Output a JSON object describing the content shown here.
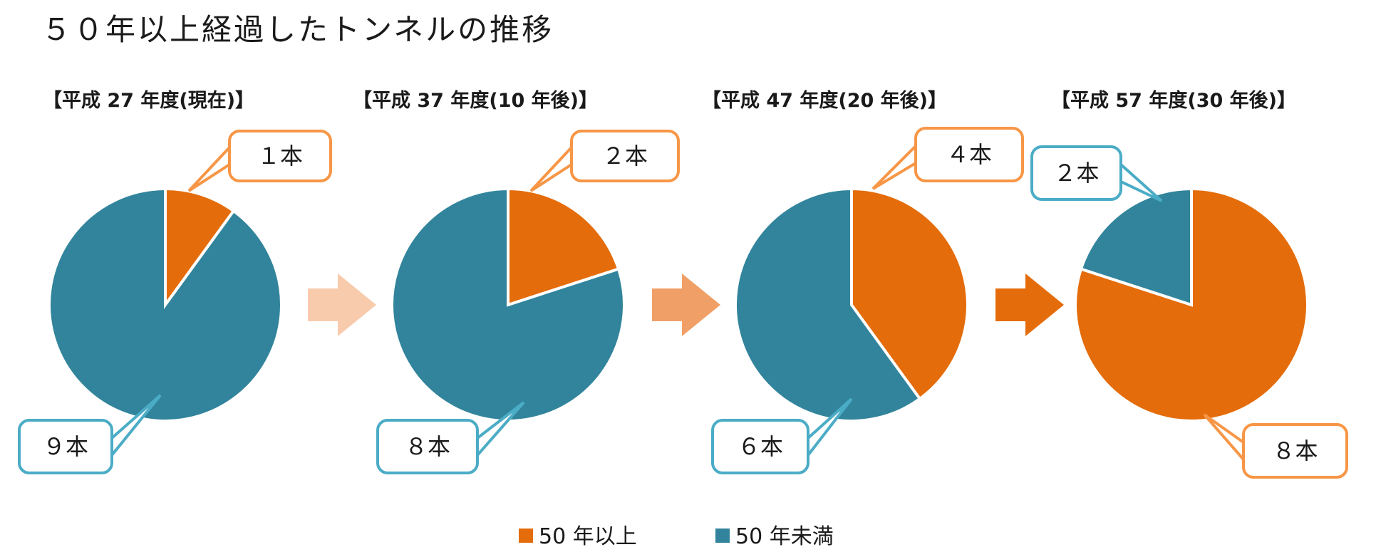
{
  "title": "５０年以上経過したトンネルの推移",
  "colors": {
    "over50": "#E46C0A",
    "under50": "#31849B",
    "over50_callout": "#F79646",
    "under50_callout": "#4BACC6",
    "arrows": [
      "#F8CBAD",
      "#F0A067",
      "#E46C0A"
    ]
  },
  "chart_data": [
    {
      "type": "pie",
      "title": "【平成 27 年度(現在)】",
      "series": [
        {
          "name": "50 年以上",
          "value": 1,
          "label": "１本"
        },
        {
          "name": "50 年未満",
          "value": 9,
          "label": "９本"
        }
      ]
    },
    {
      "type": "pie",
      "title": "【平成 37 年度(10 年後)】",
      "series": [
        {
          "name": "50 年以上",
          "value": 2,
          "label": "２本"
        },
        {
          "name": "50 年未満",
          "value": 8,
          "label": "８本"
        }
      ]
    },
    {
      "type": "pie",
      "title": "【平成 47 年度(20 年後)】",
      "series": [
        {
          "name": "50 年以上",
          "value": 4,
          "label": "４本"
        },
        {
          "name": "50 年未満",
          "value": 6,
          "label": "６本"
        }
      ]
    },
    {
      "type": "pie",
      "title": "【平成 57 年度(30 年後)】",
      "series": [
        {
          "name": "50 年以上",
          "value": 8,
          "label": "８本"
        },
        {
          "name": "50 年未満",
          "value": 2,
          "label": "２本"
        }
      ]
    }
  ],
  "legend": {
    "position": "bottom-center",
    "items": [
      {
        "label": "50 年以上",
        "color": "#E46C0A"
      },
      {
        "label": "50 年未満",
        "color": "#31849B"
      }
    ]
  }
}
